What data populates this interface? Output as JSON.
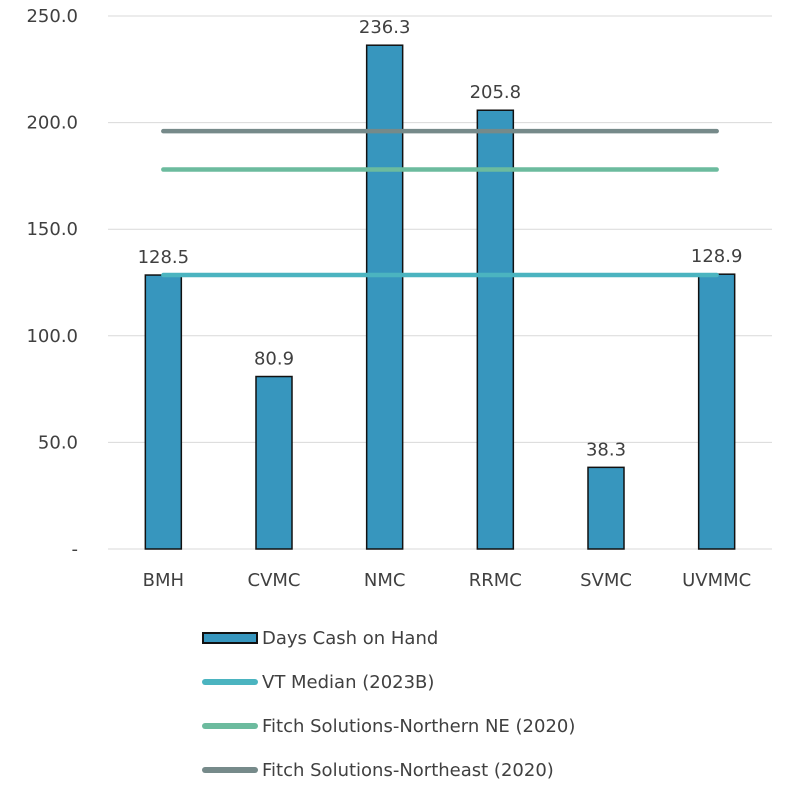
{
  "chart_data": {
    "type": "bar",
    "categories": [
      "BMH",
      "CVMC",
      "NMC",
      "RRMC",
      "SVMC",
      "UVMMC"
    ],
    "series": [
      {
        "name": "Days Cash on Hand",
        "type": "bar",
        "color": "#3796BE",
        "values": [
          128.5,
          80.9,
          236.3,
          205.8,
          38.3,
          128.9
        ]
      }
    ],
    "data_labels": [
      "128.5",
      "80.9",
      "236.3",
      "205.8",
      "38.3",
      "128.9"
    ],
    "reference_lines": [
      {
        "name": "VT Median (2023B)",
        "value": 128.5,
        "color": "#4BB4C0"
      },
      {
        "name": "Fitch Solutions-Northern NE (2020)",
        "value": 178,
        "color": "#6CBB9E"
      },
      {
        "name": "Fitch Solutions-Northeast (2020)",
        "value": 196,
        "color": "#768A8A"
      }
    ],
    "yticks": [
      "-",
      "50.0",
      "100.0",
      "150.0",
      "200.0",
      "250.0"
    ],
    "ylim": [
      0,
      250
    ],
    "title": "",
    "xlabel": "",
    "ylabel": "",
    "grid": true,
    "legend_position": "bottom"
  }
}
